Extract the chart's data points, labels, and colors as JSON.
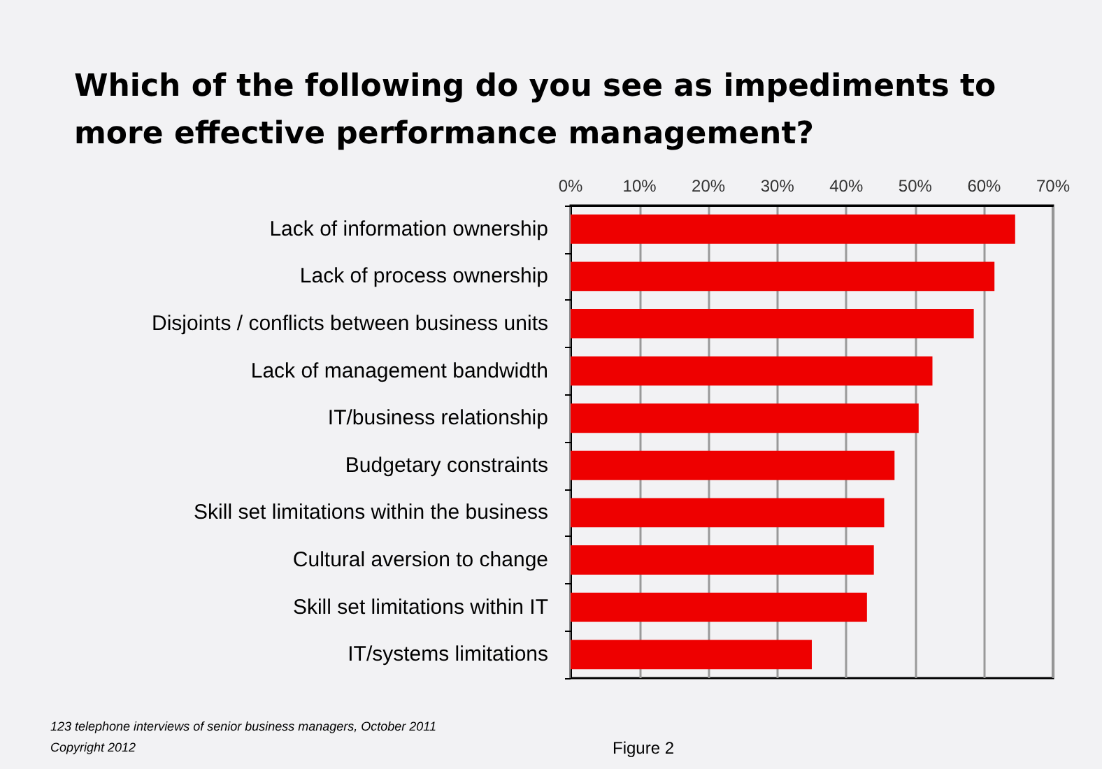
{
  "chart_data": {
    "type": "bar",
    "orientation": "horizontal",
    "title": "Which of the following do you see as impediments to more effective performance management?",
    "categories": [
      "Lack of information ownership",
      "Lack of process ownership",
      "Disjoints / conflicts between business units",
      "Lack of management bandwidth",
      "IT/business relationship",
      "Budgetary constraints",
      "Skill set limitations within the business",
      "Cultural aversion to change",
      "Skill set limitations within IT",
      "IT/systems limitations"
    ],
    "values": [
      64.5,
      61.5,
      58.5,
      52.5,
      50.5,
      47,
      45.5,
      44,
      43,
      35
    ],
    "color": "#ee0000",
    "xlim": [
      0,
      70
    ],
    "xticks": [
      {
        "value": 0,
        "label": "0%"
      },
      {
        "value": 10,
        "label": "10%"
      },
      {
        "value": 20,
        "label": "20%"
      },
      {
        "value": 30,
        "label": "30%"
      },
      {
        "value": 40,
        "label": "40%"
      },
      {
        "value": 50,
        "label": "50%"
      },
      {
        "value": 60,
        "label": "60%"
      },
      {
        "value": 70,
        "label": "70%"
      }
    ],
    "grid": "x",
    "annotations": [
      "123 telephone interviews of senior business managers, October 2011",
      "Copyright 2012",
      "Figure 2"
    ]
  }
}
